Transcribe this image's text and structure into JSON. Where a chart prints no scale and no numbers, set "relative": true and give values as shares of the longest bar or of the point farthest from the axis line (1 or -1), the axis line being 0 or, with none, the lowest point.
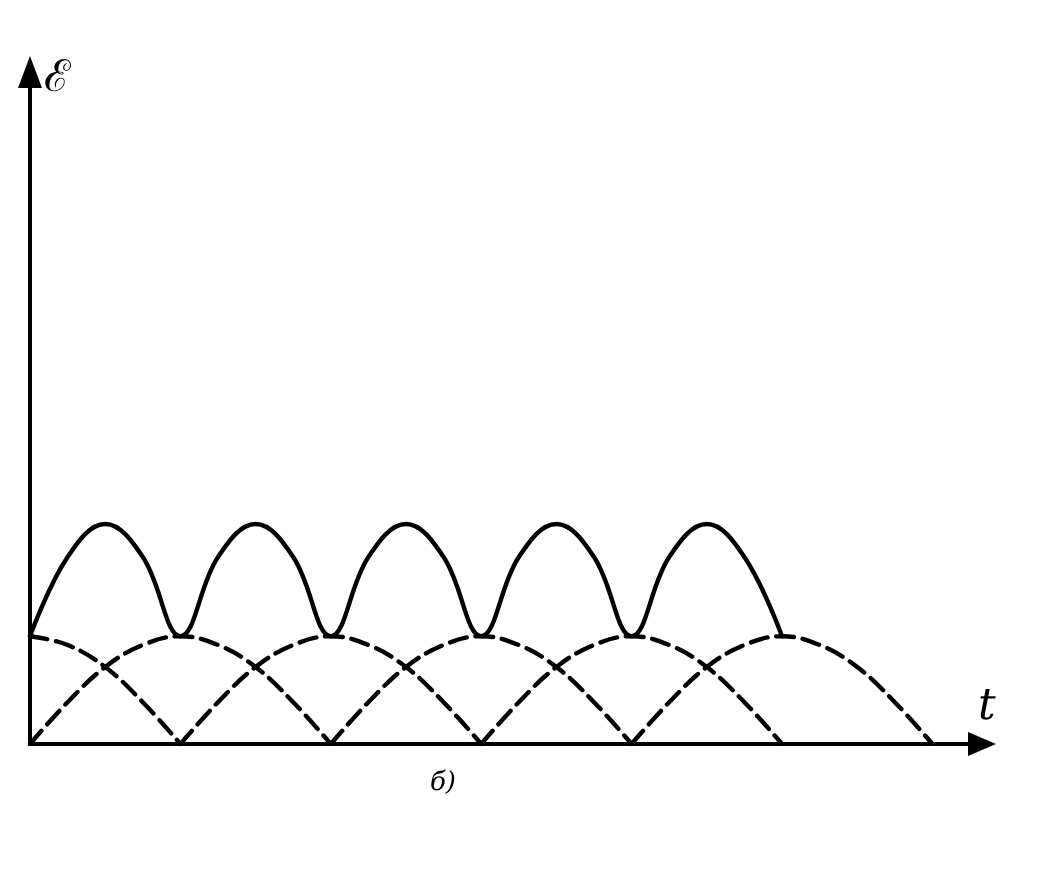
{
  "chart_data": {
    "type": "line",
    "relative": true,
    "xlabel": "t",
    "annotations": [
      "ℰ",
      "б)"
    ],
    "tick_labels": false,
    "marker": "none",
    "categories": [
      null,
      null,
      null,
      null,
      null,
      null,
      null,
      null,
      null,
      null,
      null,
      null,
      null,
      null,
      null,
      null,
      null,
      null,
      null,
      null,
      null,
      null,
      null,
      null,
      null,
      null
    ],
    "series": [
      {
        "color": "#000000",
        "line_style": "solid",
        "values": [
          0.49,
          0.85,
          1,
          0.85,
          0.49,
          0.85,
          1,
          0.85,
          0.49,
          0.85,
          1,
          0.85,
          0.49,
          0.85,
          1,
          0.85,
          0.49,
          0.85,
          1,
          0.85,
          0.49,
          null,
          null,
          null,
          null,
          null
        ]
      },
      {
        "color": "#000000",
        "line_style": "dashed",
        "values": [
          0.49,
          0.45,
          0.35,
          0.19,
          0,
          null,
          null,
          null,
          null,
          null,
          null,
          null,
          null,
          null,
          null,
          null,
          null,
          null,
          null,
          null,
          null,
          null,
          null,
          null,
          null,
          null
        ]
      },
      {
        "color": "#000000",
        "line_style": "dashed",
        "values": [
          0,
          0.19,
          0.35,
          0.45,
          0.49,
          0.45,
          0.35,
          0.19,
          0,
          null,
          null,
          null,
          null,
          null,
          null,
          null,
          null,
          null,
          null,
          null,
          null,
          null,
          null,
          null,
          null,
          null
        ]
      },
      {
        "color": "#000000",
        "line_style": "dashed",
        "values": [
          null,
          null,
          null,
          null,
          0,
          0.19,
          0.35,
          0.45,
          0.49,
          0.45,
          0.35,
          0.19,
          0,
          null,
          null,
          null,
          null,
          null,
          null,
          null,
          null,
          null,
          null,
          null,
          null,
          null
        ]
      },
      {
        "color": "#000000",
        "line_style": "dashed",
        "values": [
          null,
          null,
          null,
          null,
          null,
          null,
          null,
          null,
          0,
          0.19,
          0.35,
          0.45,
          0.49,
          0.45,
          0.35,
          0.19,
          0,
          null,
          null,
          null,
          null,
          null,
          null,
          null,
          null,
          null
        ]
      },
      {
        "color": "#000000",
        "line_style": "dashed",
        "values": [
          null,
          null,
          null,
          null,
          null,
          null,
          null,
          null,
          null,
          null,
          null,
          null,
          0,
          0.19,
          0.35,
          0.45,
          0.49,
          0.45,
          0.35,
          0.19,
          0,
          null,
          null,
          null,
          null,
          null
        ]
      },
      {
        "color": "#000000",
        "line_style": "dashed",
        "values": [
          null,
          null,
          null,
          null,
          null,
          null,
          null,
          null,
          null,
          null,
          null,
          null,
          null,
          null,
          null,
          null,
          0,
          0.19,
          0.35,
          0.45,
          0.49,
          0.45,
          0.35,
          0.19,
          0,
          null
        ]
      }
    ]
  }
}
